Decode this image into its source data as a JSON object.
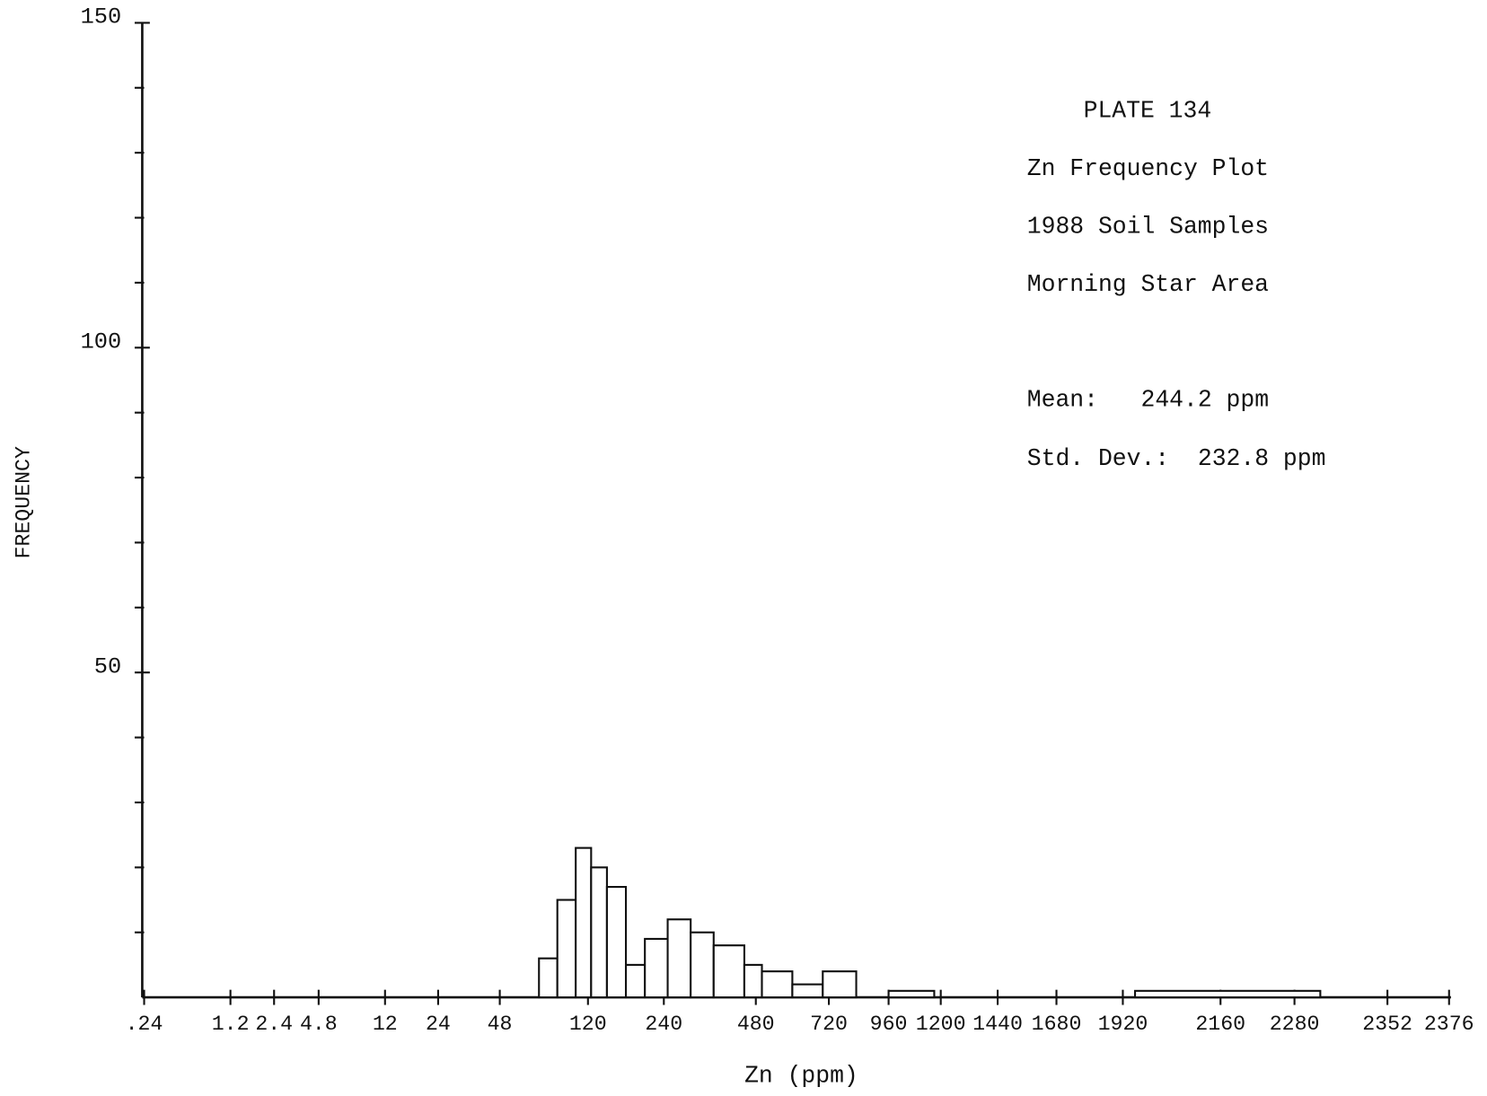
{
  "chart_data": {
    "type": "histogram",
    "title": "PLATE 134",
    "subtitle": [
      "Zn Frequency Plot",
      "1988 Soil Samples",
      "Morning Star Area"
    ],
    "stats": [
      {
        "label": "Mean:",
        "value": "244.2 ppm"
      },
      {
        "label": "Std. Dev.:",
        "value": "232.8 ppm"
      }
    ],
    "xlabel": "Zn (ppm)",
    "ylabel": "FREQUENCY",
    "bins": [
      80,
      95,
      110,
      125,
      150,
      180,
      210,
      250,
      310,
      370,
      450,
      500,
      600,
      700,
      830,
      960,
      1170,
      1950,
      2300
    ],
    "counts": [
      6,
      15,
      23,
      20,
      17,
      5,
      9,
      12,
      10,
      8,
      5,
      4,
      2,
      4,
      0,
      1,
      0,
      1
    ],
    "color": "#ffffff",
    "xlim": [
      0.24,
      2376
    ],
    "xticks": [
      {
        "value": 0.24,
        "label": ".24"
      },
      1.2,
      2.4,
      4.8,
      12,
      24,
      48,
      120,
      240,
      480,
      720,
      960,
      1200,
      1440,
      1680,
      1920,
      2160,
      2280,
      2352,
      2376
    ],
    "ylim": [
      0,
      150
    ],
    "yticks": [
      50,
      100,
      150
    ],
    "yminorticks": [
      10,
      20,
      30,
      40,
      60,
      70,
      80,
      90,
      110,
      120,
      130,
      140
    ]
  }
}
